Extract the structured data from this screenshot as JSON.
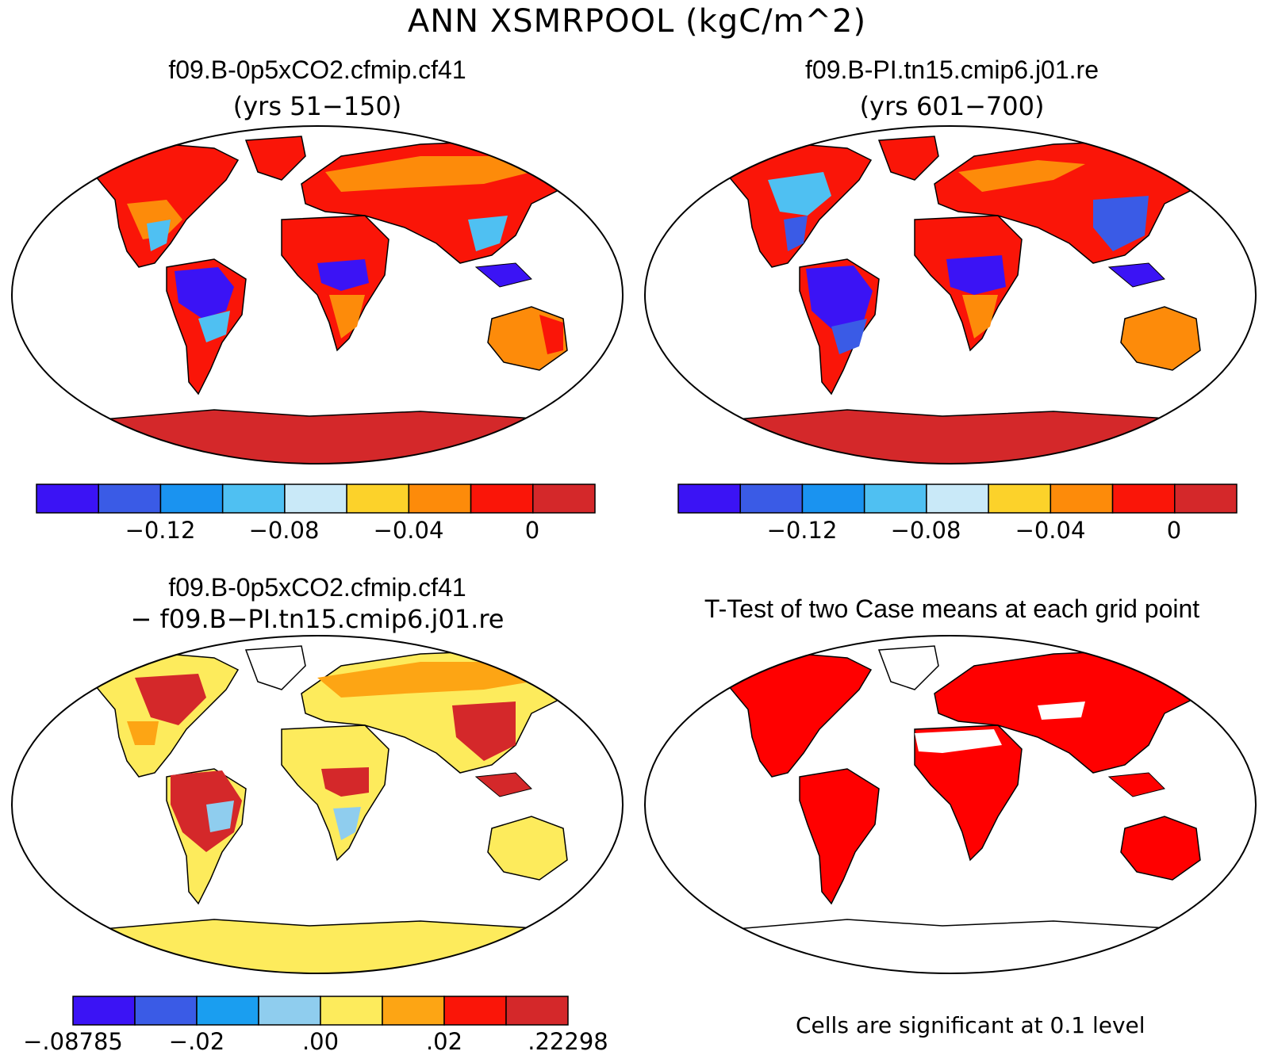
{
  "figure": {
    "title": "ANN XSMRPOOL (kgC/m^2)"
  },
  "colors": {
    "scale_a": [
      "#3b13f5",
      "#3a5be6",
      "#1a93f0",
      "#4fc0f2",
      "#c9e9f8",
      "#fcd22a",
      "#fd8b0a",
      "#fa1508",
      "#d4282a"
    ],
    "scale_b": [
      "#3b13f5",
      "#3a5be6",
      "#1a9ef0",
      "#8fcdee",
      "#fdeb5c",
      "#fda514",
      "#fa1508",
      "#d4282a"
    ],
    "land_outline": "#000000",
    "significance": "#ff0000"
  },
  "panels": [
    {
      "id": "case1",
      "title": "f09.B-0p5xCO2.cfmip.cf41",
      "subtitle": "(yrs 51−150)",
      "colorbar_ticks": [
        "−0.12",
        "−0.08",
        "−0.04",
        "0"
      ]
    },
    {
      "id": "case2",
      "title": "f09.B-PI.tn15.cmip6.j01.re",
      "subtitle": "(yrs 601−700)",
      "colorbar_ticks": [
        "−0.12",
        "−0.08",
        "−0.04",
        "0"
      ]
    },
    {
      "id": "difference",
      "title": "f09.B-0p5xCO2.cfmip.cf41",
      "subtitle": "− f09.B−PI.tn15.cmip6.j01.re",
      "colorbar_ticks": [
        "−.08785",
        "−.02",
        ".00",
        ".02",
        ".22298"
      ]
    },
    {
      "id": "ttest",
      "title": "T-Test of two Case means at each grid point",
      "footnote": "Cells are significant at 0.1 level"
    }
  ]
}
